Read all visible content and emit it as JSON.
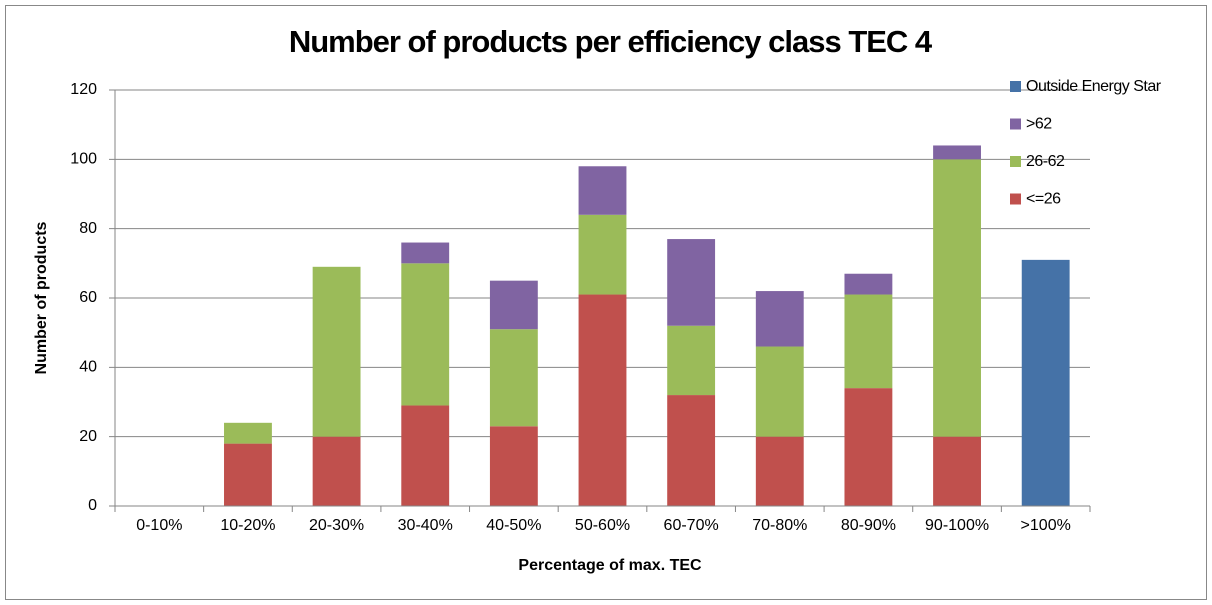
{
  "chart_data": {
    "type": "stacked_bar",
    "title": "Number of products per efficiency class TEC 4",
    "x_label": "Percentage of max. TEC",
    "y_label": "Number of products",
    "categories": [
      "0-10%",
      "10-20%",
      "20-30%",
      "30-40%",
      "40-50%",
      "50-60%",
      "60-70%",
      "70-80%",
      "80-90%",
      "90-100%",
      ">100%"
    ],
    "series": [
      {
        "name": "<=26",
        "color": "#c0504d",
        "values": [
          0,
          18,
          20,
          29,
          23,
          61,
          32,
          20,
          34,
          20,
          0
        ]
      },
      {
        "name": "26-62",
        "color": "#9bbb59",
        "values": [
          0,
          6,
          49,
          41,
          28,
          23,
          20,
          26,
          27,
          80,
          0
        ]
      },
      {
        "name": ">62",
        "color": "#8064a2",
        "values": [
          0,
          0,
          0,
          6,
          14,
          14,
          25,
          16,
          6,
          4,
          0
        ]
      },
      {
        "name": "Outside Energy Star",
        "color": "#4572a7",
        "values": [
          0,
          0,
          0,
          0,
          0,
          0,
          0,
          0,
          0,
          0,
          71
        ]
      }
    ],
    "ylim": [
      0,
      120
    ],
    "yticks": [
      0,
      20,
      40,
      60,
      80,
      100,
      120
    ],
    "grid": true,
    "legend": "right"
  }
}
